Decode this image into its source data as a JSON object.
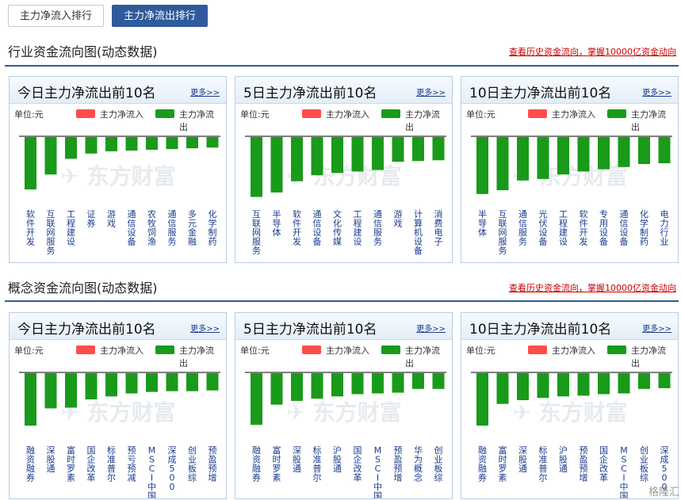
{
  "tabs": [
    "主力净流入排行",
    "主力净流出排行"
  ],
  "active_tab": 1,
  "sections": [
    {
      "title": "行业资金流向图(动态数据)",
      "link": "查看历史资金流向，掌握10000亿资金动向",
      "panels": [
        {
          "title": "今日主力净流出前10名",
          "more": "更多>>",
          "chart_data": {
            "type": "bar",
            "categories": [
              "软件开发",
              "互联网服务",
              "工程建设",
              "证券",
              "游戏",
              "通信设备",
              "农牧饲渔",
              "通信服务",
              "多元金融",
              "化学制药"
            ],
            "values": [
              -70,
              -50,
              -29,
              -22,
              -19,
              -18,
              -17,
              -16,
              -15,
              -14
            ],
            "ylim": [
              -90,
              0
            ]
          }
        },
        {
          "title": "5日主力净流出前10名",
          "more": "更多>>",
          "chart_data": {
            "type": "bar",
            "categories": [
              "互联网服务",
              "半导体",
              "软件开发",
              "通信设备",
              "文化传媒",
              "工程建设",
              "通信服务",
              "游戏",
              "计算机设备",
              "消费电子"
            ],
            "values": [
              -80,
              -74,
              -59,
              -51,
              -48,
              -46,
              -44,
              -33,
              -32,
              -31
            ],
            "ylim": [
              -90,
              0
            ]
          }
        },
        {
          "title": "10日主力净流出前10名",
          "more": "更多>>",
          "chart_data": {
            "type": "bar",
            "categories": [
              "半导体",
              "互联网服务",
              "通信服务",
              "光伏设备",
              "工程建设",
              "软件开发",
              "专用设备",
              "通信设备",
              "化学制药",
              "电力行业"
            ],
            "values": [
              -76,
              -71,
              -58,
              -56,
              -50,
              -46,
              -43,
              -40,
              -36,
              -35
            ],
            "ylim": [
              -90,
              0
            ]
          }
        }
      ]
    },
    {
      "title": "概念资金流向图(动态数据)",
      "link": "查看历史资金流向，掌握10000亿资金动向",
      "panels": [
        {
          "title": "今日主力净流出前10名",
          "more": "更多>>",
          "chart_data": {
            "type": "bar",
            "categories": [
              "融资融券",
              "深股通",
              "富时罗素",
              "国企改革",
              "标准普尔",
              "预亏预减",
              "MSCI中国",
              "深成500",
              "创业板综",
              "预盈预增"
            ],
            "values": [
              -70,
              -47,
              -46,
              -35,
              -31,
              -27,
              -25,
              -24,
              -24,
              -23
            ],
            "ylim": [
              -90,
              0
            ]
          }
        },
        {
          "title": "5日主力净流出前10名",
          "more": "更多>>",
          "chart_data": {
            "type": "bar",
            "categories": [
              "融资融券",
              "富时罗素",
              "深股通",
              "标准普尔",
              "沪股通",
              "国企改革",
              "MSCI中国",
              "预盈预增",
              "华为概念",
              "创业板综"
            ],
            "values": [
              -69,
              -42,
              -37,
              -34,
              -31,
              -28,
              -27,
              -26,
              -21,
              -21
            ],
            "ylim": [
              -90,
              0
            ]
          }
        },
        {
          "title": "10日主力净流出前10名",
          "more": "更多>>",
          "chart_data": {
            "type": "bar",
            "categories": [
              "融资融券",
              "富时罗素",
              "深股通",
              "标准普尔",
              "沪股通",
              "预盈预增",
              "国企改革",
              "MSCI中国",
              "创业板综",
              "深成500"
            ],
            "values": [
              -70,
              -41,
              -36,
              -33,
              -31,
              -30,
              -28,
              -27,
              -21,
              -20
            ],
            "ylim": [
              -90,
              0
            ]
          }
        }
      ]
    }
  ],
  "legend": {
    "unit": "单位:元",
    "inflow": "主力净流入",
    "outflow": "主力净流出"
  },
  "colors": {
    "inflow": "#ff4d4d",
    "outflow": "#1a9a1a",
    "accent": "#2f5b9c",
    "link": "#cc0000"
  },
  "watermark": "东方财富",
  "corner_mark": "格隆汇"
}
